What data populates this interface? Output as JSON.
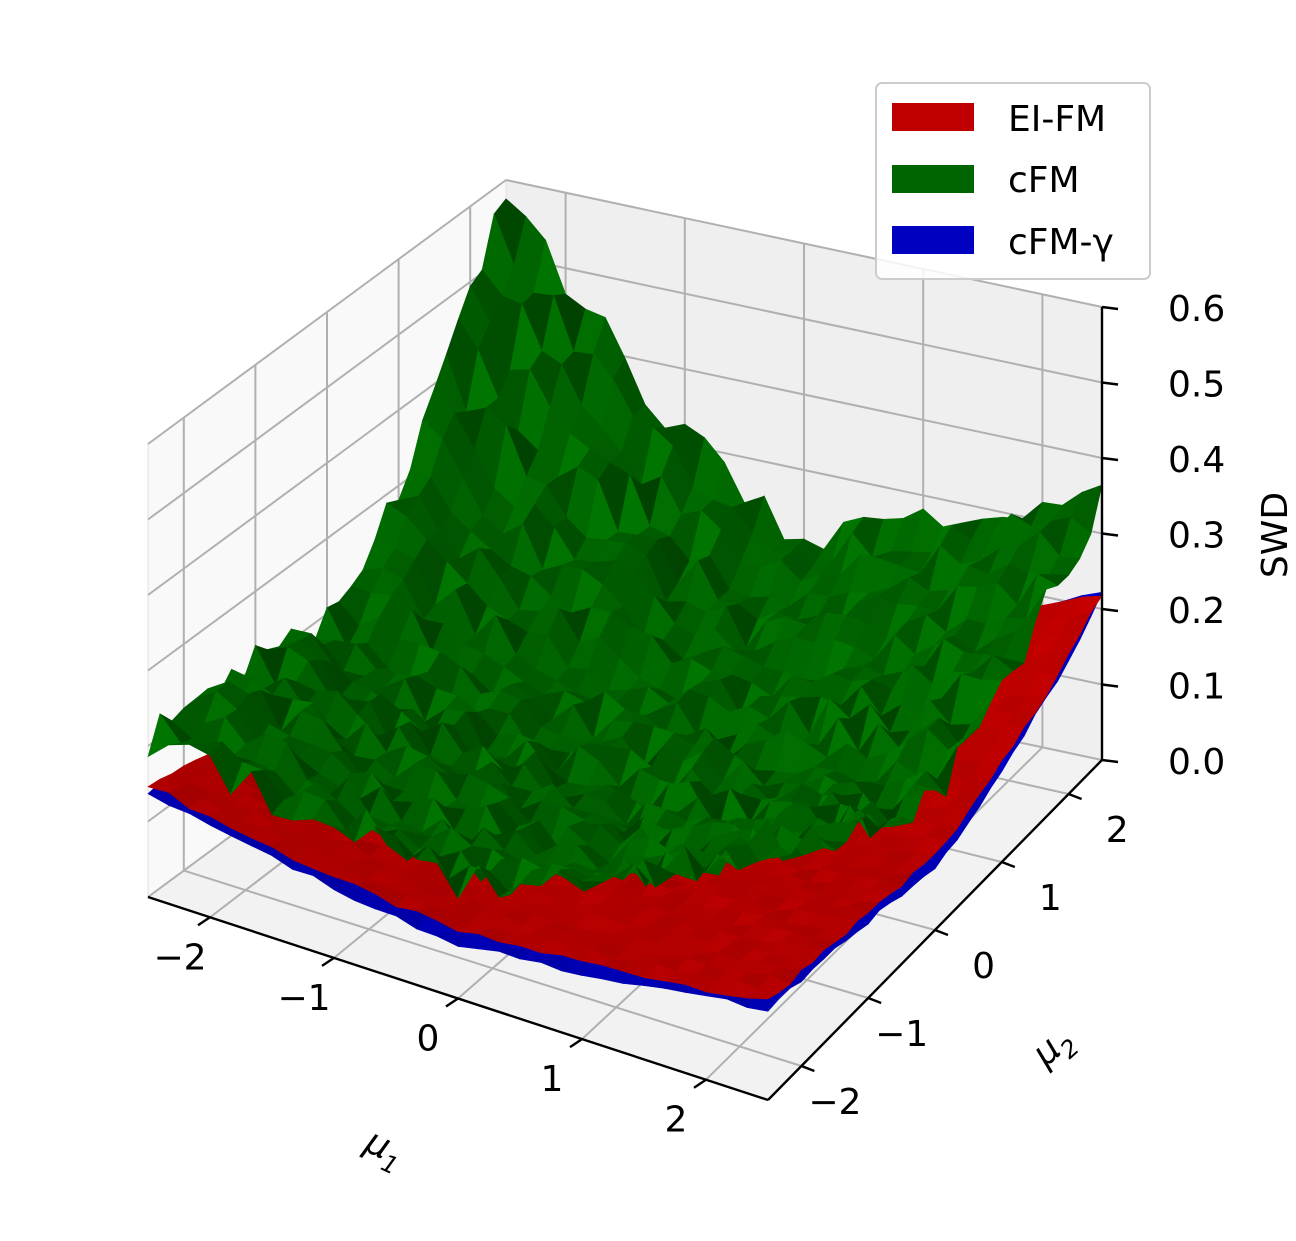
{
  "chart_data": {
    "type": "surface3d",
    "title": "",
    "xlabel": "μ₁",
    "ylabel": "μ₂",
    "zlabel": "SWD",
    "xlim": [
      -2.5,
      2.5
    ],
    "ylim": [
      -2.5,
      2.5
    ],
    "zlim": [
      0.0,
      0.6
    ],
    "x_ticks": [
      "−2",
      "−1",
      "0",
      "1",
      "2"
    ],
    "y_ticks": [
      "−2",
      "−1",
      "0",
      "1",
      "2"
    ],
    "z_ticks": [
      "0.0",
      "0.1",
      "0.2",
      "0.3",
      "0.4",
      "0.5",
      "0.6"
    ],
    "grid": true,
    "legend_position": "top-right",
    "series": [
      {
        "name": "EI-FM",
        "color": "#c00000",
        "model": "bowl",
        "z_min": 0.07,
        "z_at_corners": {
          "x-2.5,y-2.5": 0.15,
          "x2.5,y-2.5": 0.13,
          "x-2.5,y2.5": 0.22,
          "x2.5,y2.5": 0.22
        }
      },
      {
        "name": "cFM",
        "color": "#006400",
        "model": "bowl",
        "z_min": 0.11,
        "z_at_corners": {
          "x-2.5,y-2.5": 0.2,
          "x2.5,y-2.5": 0.35,
          "x-2.5,y2.5": 0.6,
          "x2.5,y2.5": 0.35
        }
      },
      {
        "name": "cFM-γ",
        "color": "#0000c0",
        "model": "bowl",
        "z_min": 0.05,
        "z_at_corners": {
          "x-2.5,y-2.5": 0.14,
          "x2.5,y-2.5": 0.12,
          "x-2.5,y2.5": 0.21,
          "x2.5,y2.5": 0.22
        }
      }
    ]
  }
}
